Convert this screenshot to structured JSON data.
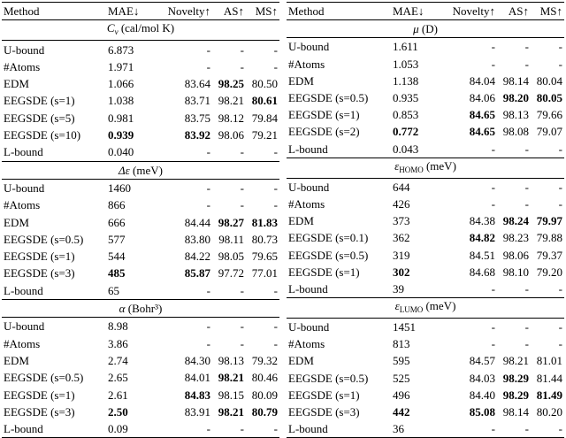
{
  "tables": [
    {
      "header": [
        "Method",
        "MAE↓",
        "Novelty↑",
        "AS↑",
        "MS↑"
      ],
      "sections": [
        {
          "symbol": "C",
          "sub": "v",
          "unit": "(cal/mol K)",
          "rows": [
            {
              "cells": [
                "U-bound",
                "6.873",
                "-",
                "-",
                "-"
              ],
              "bold": []
            },
            {
              "cells": [
                "#Atoms",
                "1.971",
                "-",
                "-",
                "-"
              ],
              "bold": []
            },
            {
              "cells": [
                "EDM",
                "1.066",
                "83.64",
                "98.25",
                "80.50"
              ],
              "bold": [
                3
              ]
            },
            {
              "cells": [
                "EEGSDE (s=1)",
                "1.038",
                "83.71",
                "98.21",
                "80.61"
              ],
              "bold": [
                4
              ]
            },
            {
              "cells": [
                "EEGSDE (s=5)",
                "0.981",
                "83.75",
                "98.12",
                "79.84"
              ],
              "bold": []
            },
            {
              "cells": [
                "EEGSDE (s=10)",
                "0.939",
                "83.92",
                "98.06",
                "79.21"
              ],
              "bold": [
                1,
                2
              ]
            },
            {
              "cells": [
                "L-bound",
                "0.040",
                "-",
                "-",
                "-"
              ],
              "bold": []
            }
          ]
        },
        {
          "symbol": "Δε",
          "unit": "(meV)",
          "rows": [
            {
              "cells": [
                "U-bound",
                "1460",
                "-",
                "-",
                "-"
              ],
              "bold": []
            },
            {
              "cells": [
                "#Atoms",
                "866",
                "-",
                "-",
                "-"
              ],
              "bold": []
            },
            {
              "cells": [
                "EDM",
                "666",
                "84.44",
                "98.27",
                "81.83"
              ],
              "bold": [
                3,
                4
              ]
            },
            {
              "cells": [
                "EEGSDE (s=0.5)",
                "577",
                "83.80",
                "98.11",
                "80.73"
              ],
              "bold": []
            },
            {
              "cells": [
                "EEGSDE (s=1)",
                "544",
                "84.22",
                "98.05",
                "79.65"
              ],
              "bold": []
            },
            {
              "cells": [
                "EEGSDE (s=3)",
                "485",
                "85.87",
                "97.72",
                "77.01"
              ],
              "bold": [
                1,
                2
              ]
            },
            {
              "cells": [
                "L-bound",
                "65",
                "-",
                "-",
                "-"
              ],
              "bold": []
            }
          ]
        },
        {
          "symbol": "α",
          "unit": "(Bohr³)",
          "rows": [
            {
              "cells": [
                "U-bound",
                "8.98",
                "-",
                "-",
                "-"
              ],
              "bold": []
            },
            {
              "cells": [
                "#Atoms",
                "3.86",
                "-",
                "-",
                "-"
              ],
              "bold": []
            },
            {
              "cells": [
                "EDM",
                "2.74",
                "84.30",
                "98.13",
                "79.32"
              ],
              "bold": []
            },
            {
              "cells": [
                "EEGSDE (s=0.5)",
                "2.65",
                "84.01",
                "98.21",
                "80.46"
              ],
              "bold": [
                3
              ]
            },
            {
              "cells": [
                "EEGSDE (s=1)",
                "2.61",
                "84.83",
                "98.15",
                "80.09"
              ],
              "bold": [
                2
              ]
            },
            {
              "cells": [
                "EEGSDE (s=3)",
                "2.50",
                "83.91",
                "98.21",
                "80.79"
              ],
              "bold": [
                1,
                3,
                4
              ]
            },
            {
              "cells": [
                "L-bound",
                "0.09",
                "-",
                "-",
                "-"
              ],
              "bold": []
            }
          ]
        }
      ]
    },
    {
      "header": [
        "Method",
        "MAE↓",
        "Novelty↑",
        "AS↑",
        "MS↑"
      ],
      "sections": [
        {
          "symbol": "μ",
          "unit": "(D)",
          "rows": [
            {
              "cells": [
                "U-bound",
                "1.611",
                "-",
                "-",
                "-"
              ],
              "bold": []
            },
            {
              "cells": [
                "#Atoms",
                "1.053",
                "-",
                "-",
                "-"
              ],
              "bold": []
            },
            {
              "cells": [
                "EDM",
                "1.138",
                "84.04",
                "98.14",
                "80.04"
              ],
              "bold": []
            },
            {
              "cells": [
                "EEGSDE (s=0.5)",
                "0.935",
                "84.06",
                "98.20",
                "80.05"
              ],
              "bold": [
                3,
                4
              ]
            },
            {
              "cells": [
                "EEGSDE (s=1)",
                "0.853",
                "84.65",
                "98.13",
                "79.66"
              ],
              "bold": [
                2
              ]
            },
            {
              "cells": [
                "EEGSDE (s=2)",
                "0.772",
                "84.65",
                "98.08",
                "79.07"
              ],
              "bold": [
                1,
                2
              ]
            },
            {
              "cells": [
                "L-bound",
                "0.043",
                "-",
                "-",
                "-"
              ],
              "bold": []
            }
          ]
        },
        {
          "symbol": "ε",
          "sub": "HOMO",
          "unit": "(meV)",
          "rows": [
            {
              "cells": [
                "U-bound",
                "644",
                "-",
                "-",
                "-"
              ],
              "bold": []
            },
            {
              "cells": [
                "#Atoms",
                "426",
                "-",
                "-",
                "-"
              ],
              "bold": []
            },
            {
              "cells": [
                "EDM",
                "373",
                "84.38",
                "98.24",
                "79.97"
              ],
              "bold": [
                3,
                4
              ]
            },
            {
              "cells": [
                "EEGSDE (s=0.1)",
                "362",
                "84.82",
                "98.23",
                "79.88"
              ],
              "bold": [
                2
              ]
            },
            {
              "cells": [
                "EEGSDE (s=0.5)",
                "319",
                "84.51",
                "98.06",
                "79.37"
              ],
              "bold": []
            },
            {
              "cells": [
                "EEGSDE (s=1)",
                "302",
                "84.68",
                "98.10",
                "79.20"
              ],
              "bold": [
                1
              ]
            },
            {
              "cells": [
                "L-bound",
                "39",
                "-",
                "-",
                "-"
              ],
              "bold": []
            }
          ]
        },
        {
          "symbol": "ε",
          "sub": "LUMO",
          "unit": "(meV)",
          "rows": [
            {
              "cells": [
                "U-bound",
                "1451",
                "-",
                "-",
                "-"
              ],
              "bold": []
            },
            {
              "cells": [
                "#Atoms",
                "813",
                "-",
                "-",
                "-"
              ],
              "bold": []
            },
            {
              "cells": [
                "EDM",
                "595",
                "84.57",
                "98.21",
                "81.01"
              ],
              "bold": []
            },
            {
              "cells": [
                "EEGSDE (s=0.5)",
                "525",
                "84.03",
                "98.29",
                "81.44"
              ],
              "bold": [
                3
              ]
            },
            {
              "cells": [
                "EEGSDE (s=1)",
                "496",
                "84.40",
                "98.29",
                "81.49"
              ],
              "bold": [
                3,
                4
              ]
            },
            {
              "cells": [
                "EEGSDE (s=3)",
                "442",
                "85.08",
                "98.14",
                "80.20"
              ],
              "bold": [
                1,
                2
              ]
            },
            {
              "cells": [
                "L-bound",
                "36",
                "-",
                "-",
                "-"
              ],
              "bold": []
            }
          ]
        }
      ]
    }
  ]
}
